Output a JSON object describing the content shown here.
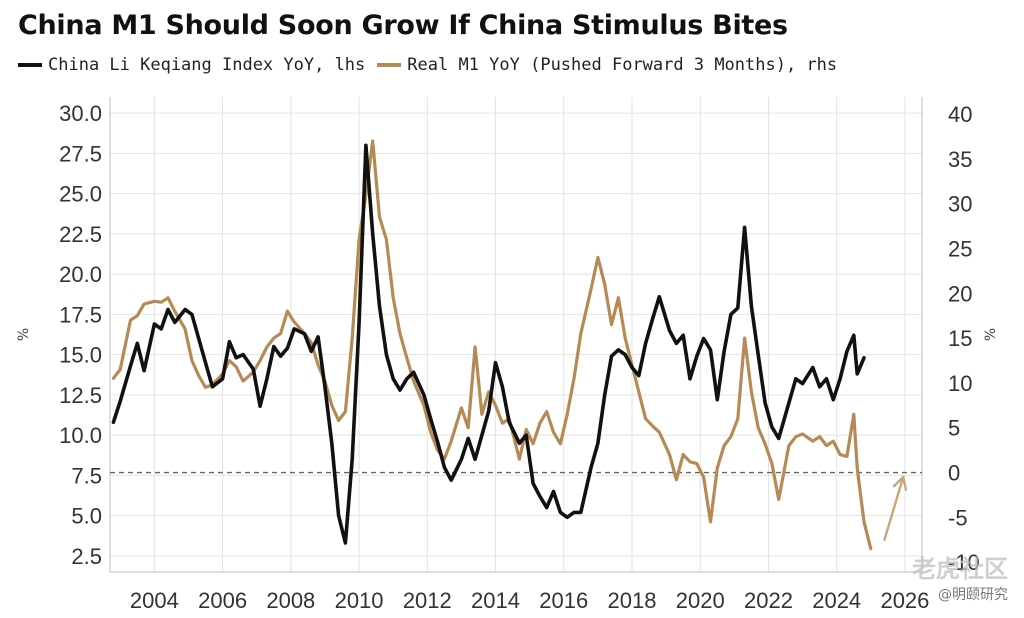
{
  "chart_data": {
    "type": "line",
    "title": "China M1 Should Soon Grow If China Stimulus Bites",
    "colors": {
      "lhs_series": "#111111",
      "rhs_series": "#b58a55",
      "baseline": "#666666",
      "arrow": "#c9a57a"
    },
    "axes": {
      "x": {
        "min": 2002.7,
        "max": 2026.5,
        "ticks": [
          2004,
          2006,
          2008,
          2010,
          2012,
          2014,
          2016,
          2018,
          2020,
          2022,
          2024,
          2026
        ],
        "tick_labels": [
          "2004",
          "2006",
          "2008",
          "2010",
          "2012",
          "2014",
          "2016",
          "2018",
          "2020",
          "2022",
          "2024",
          "2026"
        ]
      },
      "y_left": {
        "min": 1.5,
        "max": 31.0,
        "ticks": [
          2.5,
          5.0,
          7.5,
          10.0,
          12.5,
          15.0,
          17.5,
          20.0,
          22.5,
          25.0,
          27.5,
          30.0
        ],
        "tick_labels": [
          "2.5",
          "5.0",
          "7.5",
          "10.0",
          "12.5",
          "15.0",
          "17.5",
          "20.0",
          "22.5",
          "25.0",
          "27.5",
          "30.0"
        ]
      },
      "y_right": {
        "min": -11.1,
        "max": 41.9,
        "ticks": [
          -10,
          -5,
          0,
          5,
          10,
          15,
          20,
          25,
          30,
          35,
          40
        ],
        "tick_labels": [
          "-10",
          "-5",
          "0",
          "5",
          "10",
          "15",
          "20",
          "25",
          "30",
          "35",
          "40"
        ]
      }
    },
    "grid": true,
    "baseline": {
      "axis": "rhs",
      "value": 0,
      "style": "dashed"
    },
    "side_marks": {
      "left": "%",
      "right": "%"
    },
    "series": [
      {
        "name": "China Li Keqiang Index YoY, lhs",
        "axis": "lhs",
        "points": [
          [
            2002.8,
            10.8
          ],
          [
            2003.0,
            12.1
          ],
          [
            2003.3,
            14.3
          ],
          [
            2003.5,
            15.7
          ],
          [
            2003.7,
            14.0
          ],
          [
            2004.0,
            16.9
          ],
          [
            2004.2,
            16.6
          ],
          [
            2004.4,
            17.8
          ],
          [
            2004.6,
            17.0
          ],
          [
            2004.9,
            17.8
          ],
          [
            2005.1,
            17.5
          ],
          [
            2005.3,
            16.0
          ],
          [
            2005.5,
            14.5
          ],
          [
            2005.7,
            13.0
          ],
          [
            2006.0,
            13.5
          ],
          [
            2006.2,
            15.8
          ],
          [
            2006.4,
            14.8
          ],
          [
            2006.6,
            15.0
          ],
          [
            2006.9,
            14.1
          ],
          [
            2007.1,
            11.8
          ],
          [
            2007.3,
            13.5
          ],
          [
            2007.5,
            15.5
          ],
          [
            2007.7,
            14.9
          ],
          [
            2007.9,
            15.4
          ],
          [
            2008.1,
            16.6
          ],
          [
            2008.4,
            16.3
          ],
          [
            2008.6,
            15.2
          ],
          [
            2008.8,
            16.1
          ],
          [
            2009.0,
            13.0
          ],
          [
            2009.2,
            9.5
          ],
          [
            2009.4,
            5.0
          ],
          [
            2009.6,
            3.3
          ],
          [
            2009.8,
            8.5
          ],
          [
            2010.0,
            17.0
          ],
          [
            2010.2,
            28.0
          ],
          [
            2010.4,
            22.5
          ],
          [
            2010.6,
            18.0
          ],
          [
            2010.8,
            15.0
          ],
          [
            2011.0,
            13.5
          ],
          [
            2011.2,
            12.8
          ],
          [
            2011.4,
            13.5
          ],
          [
            2011.6,
            13.9
          ],
          [
            2011.9,
            12.5
          ],
          [
            2012.1,
            11.0
          ],
          [
            2012.3,
            9.6
          ],
          [
            2012.5,
            8.0
          ],
          [
            2012.7,
            7.2
          ],
          [
            2013.0,
            8.5
          ],
          [
            2013.2,
            9.8
          ],
          [
            2013.4,
            8.5
          ],
          [
            2013.6,
            10.0
          ],
          [
            2013.8,
            11.5
          ],
          [
            2014.0,
            14.5
          ],
          [
            2014.2,
            13.0
          ],
          [
            2014.4,
            10.8
          ],
          [
            2014.7,
            9.5
          ],
          [
            2014.9,
            10.0
          ],
          [
            2015.1,
            7.0
          ],
          [
            2015.3,
            6.2
          ],
          [
            2015.5,
            5.5
          ],
          [
            2015.7,
            6.5
          ],
          [
            2015.9,
            5.2
          ],
          [
            2016.1,
            4.9
          ],
          [
            2016.3,
            5.2
          ],
          [
            2016.5,
            5.2
          ],
          [
            2016.8,
            8.0
          ],
          [
            2017.0,
            9.5
          ],
          [
            2017.2,
            12.5
          ],
          [
            2017.4,
            14.9
          ],
          [
            2017.6,
            15.3
          ],
          [
            2017.8,
            15.0
          ],
          [
            2018.0,
            14.2
          ],
          [
            2018.2,
            13.7
          ],
          [
            2018.4,
            15.7
          ],
          [
            2018.6,
            17.2
          ],
          [
            2018.8,
            18.6
          ],
          [
            2019.1,
            16.5
          ],
          [
            2019.3,
            15.7
          ],
          [
            2019.5,
            16.2
          ],
          [
            2019.7,
            13.5
          ],
          [
            2019.9,
            14.9
          ],
          [
            2020.1,
            16.0
          ],
          [
            2020.3,
            15.3
          ],
          [
            2020.5,
            12.2
          ],
          [
            2020.7,
            15.2
          ],
          [
            2020.9,
            17.5
          ],
          [
            2021.1,
            17.9
          ],
          [
            2021.3,
            22.9
          ],
          [
            2021.5,
            18.0
          ],
          [
            2021.7,
            15.0
          ],
          [
            2021.9,
            12.0
          ],
          [
            2022.1,
            10.5
          ],
          [
            2022.3,
            9.8
          ],
          [
            2022.6,
            12.0
          ],
          [
            2022.8,
            13.5
          ],
          [
            2023.0,
            13.2
          ],
          [
            2023.3,
            14.2
          ],
          [
            2023.5,
            13.0
          ],
          [
            2023.7,
            13.5
          ],
          [
            2023.9,
            12.2
          ],
          [
            2024.1,
            13.5
          ],
          [
            2024.3,
            15.2
          ],
          [
            2024.5,
            16.2
          ],
          [
            2024.6,
            13.8
          ],
          [
            2024.8,
            14.8
          ]
        ]
      },
      {
        "name": "Real M1 YoY (Pushed Forward 3 Months), rhs",
        "axis": "rhs",
        "points": [
          [
            2002.8,
            10.5
          ],
          [
            2003.0,
            11.5
          ],
          [
            2003.3,
            17.0
          ],
          [
            2003.5,
            17.5
          ],
          [
            2003.7,
            18.8
          ],
          [
            2004.0,
            19.1
          ],
          [
            2004.2,
            19.0
          ],
          [
            2004.4,
            19.5
          ],
          [
            2004.6,
            18.0
          ],
          [
            2004.9,
            16.0
          ],
          [
            2005.1,
            12.5
          ],
          [
            2005.3,
            10.8
          ],
          [
            2005.5,
            9.5
          ],
          [
            2005.7,
            9.8
          ],
          [
            2006.0,
            11.0
          ],
          [
            2006.2,
            12.5
          ],
          [
            2006.4,
            11.8
          ],
          [
            2006.6,
            10.2
          ],
          [
            2006.9,
            11.2
          ],
          [
            2007.1,
            12.5
          ],
          [
            2007.3,
            14.0
          ],
          [
            2007.5,
            15.0
          ],
          [
            2007.7,
            15.5
          ],
          [
            2007.9,
            18.0
          ],
          [
            2008.1,
            16.8
          ],
          [
            2008.4,
            15.5
          ],
          [
            2008.6,
            14.5
          ],
          [
            2008.8,
            12.0
          ],
          [
            2009.0,
            10.2
          ],
          [
            2009.2,
            7.5
          ],
          [
            2009.4,
            5.8
          ],
          [
            2009.6,
            6.8
          ],
          [
            2009.8,
            15.0
          ],
          [
            2010.0,
            26.0
          ],
          [
            2010.2,
            31.0
          ],
          [
            2010.4,
            37.0
          ],
          [
            2010.6,
            28.5
          ],
          [
            2010.8,
            26.0
          ],
          [
            2011.0,
            19.5
          ],
          [
            2011.2,
            15.5
          ],
          [
            2011.4,
            12.8
          ],
          [
            2011.6,
            10.2
          ],
          [
            2011.9,
            7.5
          ],
          [
            2012.1,
            4.5
          ],
          [
            2012.3,
            2.5
          ],
          [
            2012.5,
            1.5
          ],
          [
            2012.7,
            3.5
          ],
          [
            2013.0,
            7.2
          ],
          [
            2013.2,
            5.0
          ],
          [
            2013.4,
            14.0
          ],
          [
            2013.6,
            6.5
          ],
          [
            2013.8,
            9.0
          ],
          [
            2014.0,
            7.5
          ],
          [
            2014.2,
            5.5
          ],
          [
            2014.4,
            6.0
          ],
          [
            2014.7,
            1.5
          ],
          [
            2014.9,
            4.8
          ],
          [
            2015.1,
            3.2
          ],
          [
            2015.3,
            5.5
          ],
          [
            2015.5,
            6.8
          ],
          [
            2015.7,
            4.5
          ],
          [
            2015.9,
            3.2
          ],
          [
            2016.1,
            6.5
          ],
          [
            2016.3,
            10.5
          ],
          [
            2016.5,
            15.5
          ],
          [
            2016.8,
            20.5
          ],
          [
            2017.0,
            24.0
          ],
          [
            2017.2,
            21.0
          ],
          [
            2017.4,
            16.5
          ],
          [
            2017.6,
            19.5
          ],
          [
            2017.8,
            15.0
          ],
          [
            2018.0,
            12.0
          ],
          [
            2018.2,
            9.0
          ],
          [
            2018.4,
            6.0
          ],
          [
            2018.6,
            5.2
          ],
          [
            2018.8,
            4.5
          ],
          [
            2019.1,
            2.0
          ],
          [
            2019.3,
            -0.8
          ],
          [
            2019.5,
            2.0
          ],
          [
            2019.7,
            1.2
          ],
          [
            2019.9,
            1.0
          ],
          [
            2020.1,
            -0.5
          ],
          [
            2020.3,
            -5.5
          ],
          [
            2020.5,
            0.5
          ],
          [
            2020.7,
            3.0
          ],
          [
            2020.9,
            4.0
          ],
          [
            2021.1,
            6.0
          ],
          [
            2021.3,
            15.0
          ],
          [
            2021.5,
            9.0
          ],
          [
            2021.7,
            5.0
          ],
          [
            2021.9,
            3.2
          ],
          [
            2022.1,
            1.0
          ],
          [
            2022.3,
            -3.0
          ],
          [
            2022.6,
            3.0
          ],
          [
            2022.8,
            4.0
          ],
          [
            2023.0,
            4.3
          ],
          [
            2023.3,
            3.5
          ],
          [
            2023.5,
            4.0
          ],
          [
            2023.7,
            3.0
          ],
          [
            2023.9,
            3.5
          ],
          [
            2024.1,
            2.0
          ],
          [
            2024.3,
            1.8
          ],
          [
            2024.5,
            6.5
          ],
          [
            2024.6,
            0.5
          ],
          [
            2024.8,
            -5.5
          ],
          [
            2025.0,
            -8.5
          ]
        ]
      }
    ],
    "annotation": {
      "type": "arrow",
      "axis": "rhs",
      "from": [
        2025.4,
        -7.5
      ],
      "to": [
        2025.95,
        -0.5
      ]
    }
  },
  "watermark": {
    "line1": "老虎社区",
    "line2": "@明颐研究"
  }
}
